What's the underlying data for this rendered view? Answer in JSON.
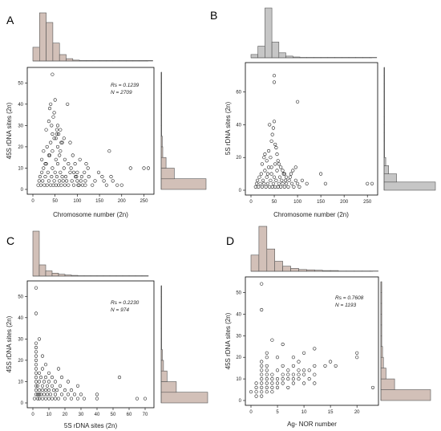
{
  "colors": {
    "hist_brown": "#d2c0b8",
    "hist_gray": "#c6c6c6",
    "point": "#111111"
  },
  "chart_data": [
    {
      "type": "scatter",
      "panel": "A",
      "xlabel": "Chromosome number (2n)",
      "ylabel": "45S rDNA sites (2n)",
      "rs": "Rs = 0.1239",
      "n": "N = 2709",
      "xlim": [
        0,
        260
      ],
      "ylim": [
        0,
        55
      ],
      "xticks": [
        0,
        50,
        100,
        150,
        200,
        250
      ],
      "yticks": [
        0,
        10,
        20,
        30,
        40,
        50
      ],
      "hist_color": "brown",
      "top_hist": {
        "bin_width": 15,
        "counts": [
          30,
          105,
          84,
          39,
          14,
          5,
          2,
          1,
          1,
          1,
          1,
          1,
          1,
          1,
          1,
          1,
          1,
          1
        ]
      },
      "right_hist": {
        "bin_width": 5,
        "counts": [
          82,
          24,
          9,
          3,
          2,
          1,
          1,
          1,
          1,
          1,
          1
        ]
      },
      "points": [
        [
          12,
          2
        ],
        [
          14,
          4
        ],
        [
          16,
          6
        ],
        [
          18,
          2
        ],
        [
          20,
          8
        ],
        [
          22,
          4
        ],
        [
          24,
          10
        ],
        [
          26,
          2
        ],
        [
          28,
          6
        ],
        [
          30,
          12
        ],
        [
          32,
          2
        ],
        [
          34,
          8
        ],
        [
          36,
          4
        ],
        [
          38,
          16
        ],
        [
          40,
          2
        ],
        [
          42,
          6
        ],
        [
          44,
          10
        ],
        [
          46,
          2
        ],
        [
          48,
          4
        ],
        [
          50,
          8
        ],
        [
          52,
          2
        ],
        [
          54,
          6
        ],
        [
          56,
          12
        ],
        [
          58,
          2
        ],
        [
          60,
          4
        ],
        [
          62,
          8
        ],
        [
          64,
          2
        ],
        [
          66,
          6
        ],
        [
          68,
          4
        ],
        [
          70,
          10
        ],
        [
          72,
          2
        ],
        [
          74,
          6
        ],
        [
          76,
          4
        ],
        [
          80,
          2
        ],
        [
          84,
          8
        ],
        [
          88,
          4
        ],
        [
          92,
          2
        ],
        [
          96,
          6
        ],
        [
          100,
          4
        ],
        [
          104,
          2
        ],
        [
          110,
          6
        ],
        [
          118,
          2
        ],
        [
          20,
          14
        ],
        [
          24,
          18
        ],
        [
          28,
          12
        ],
        [
          32,
          20
        ],
        [
          36,
          16
        ],
        [
          40,
          22
        ],
        [
          44,
          18
        ],
        [
          48,
          24
        ],
        [
          52,
          14
        ],
        [
          56,
          20
        ],
        [
          60,
          16
        ],
        [
          64,
          22
        ],
        [
          30,
          28
        ],
        [
          36,
          32
        ],
        [
          38,
          38
        ],
        [
          40,
          40
        ],
        [
          42,
          30
        ],
        [
          44,
          26
        ],
        [
          46,
          34
        ],
        [
          48,
          36
        ],
        [
          50,
          42
        ],
        [
          52,
          24
        ],
        [
          54,
          28
        ],
        [
          56,
          30
        ],
        [
          58,
          26
        ],
        [
          62,
          28
        ],
        [
          66,
          22
        ],
        [
          70,
          24
        ],
        [
          78,
          40
        ],
        [
          84,
          22
        ],
        [
          90,
          16
        ],
        [
          95,
          12
        ],
        [
          100,
          8
        ],
        [
          44,
          54
        ],
        [
          54,
          26
        ],
        [
          62,
          18
        ],
        [
          72,
          14
        ],
        [
          80,
          12
        ],
        [
          86,
          10
        ],
        [
          92,
          8
        ],
        [
          98,
          6
        ],
        [
          102,
          2
        ],
        [
          108,
          4
        ],
        [
          112,
          2
        ],
        [
          118,
          4
        ],
        [
          126,
          6
        ],
        [
          134,
          2
        ],
        [
          140,
          4
        ],
        [
          148,
          8
        ],
        [
          156,
          6
        ],
        [
          160,
          4
        ],
        [
          166,
          2
        ],
        [
          172,
          18
        ],
        [
          176,
          6
        ],
        [
          180,
          4
        ],
        [
          190,
          2
        ],
        [
          200,
          2
        ],
        [
          220,
          10
        ],
        [
          250,
          10
        ],
        [
          260,
          10
        ],
        [
          120,
          12
        ],
        [
          116,
          8
        ],
        [
          124,
          10
        ],
        [
          106,
          14
        ]
      ]
    },
    {
      "type": "scatter",
      "panel": "B",
      "xlabel": "Chromosome number (2n)",
      "ylabel": "5S rDNA sites (2n)",
      "xlim": [
        0,
        260
      ],
      "ylim": [
        0,
        75
      ],
      "xticks": [
        0,
        50,
        100,
        150,
        200,
        250
      ],
      "yticks": [
        0,
        20,
        40,
        60
      ],
      "hist_color": "gray",
      "top_hist": {
        "bin_width": 15,
        "counts": [
          8,
          28,
          120,
          38,
          12,
          4,
          2,
          1,
          1,
          1,
          1,
          1,
          1,
          1,
          1,
          1,
          1,
          1
        ]
      },
      "right_hist": {
        "bin_width": 5,
        "counts": [
          90,
          22,
          8,
          3,
          1,
          1,
          1,
          1,
          1,
          1,
          1,
          1,
          1,
          1,
          1
        ]
      },
      "points": [
        [
          10,
          2
        ],
        [
          12,
          4
        ],
        [
          14,
          6
        ],
        [
          16,
          2
        ],
        [
          18,
          8
        ],
        [
          20,
          4
        ],
        [
          22,
          10
        ],
        [
          24,
          2
        ],
        [
          26,
          6
        ],
        [
          28,
          4
        ],
        [
          30,
          12
        ],
        [
          32,
          2
        ],
        [
          34,
          8
        ],
        [
          36,
          4
        ],
        [
          38,
          14
        ],
        [
          40,
          2
        ],
        [
          42,
          6
        ],
        [
          44,
          10
        ],
        [
          46,
          2
        ],
        [
          48,
          4
        ],
        [
          50,
          8
        ],
        [
          52,
          2
        ],
        [
          54,
          6
        ],
        [
          56,
          12
        ],
        [
          58,
          2
        ],
        [
          60,
          4
        ],
        [
          62,
          8
        ],
        [
          64,
          2
        ],
        [
          66,
          6
        ],
        [
          68,
          4
        ],
        [
          70,
          10
        ],
        [
          72,
          2
        ],
        [
          74,
          6
        ],
        [
          76,
          4
        ],
        [
          80,
          2
        ],
        [
          84,
          8
        ],
        [
          88,
          4
        ],
        [
          92,
          2
        ],
        [
          96,
          6
        ],
        [
          100,
          4
        ],
        [
          104,
          2
        ],
        [
          110,
          6
        ],
        [
          24,
          16
        ],
        [
          28,
          20
        ],
        [
          30,
          22
        ],
        [
          34,
          18
        ],
        [
          38,
          24
        ],
        [
          40,
          40
        ],
        [
          42,
          20
        ],
        [
          44,
          30
        ],
        [
          46,
          34
        ],
        [
          48,
          38
        ],
        [
          50,
          42
        ],
        [
          52,
          28
        ],
        [
          54,
          26
        ],
        [
          56,
          22
        ],
        [
          58,
          18
        ],
        [
          60,
          16
        ],
        [
          64,
          14
        ],
        [
          68,
          12
        ],
        [
          72,
          10
        ],
        [
          76,
          8
        ],
        [
          82,
          6
        ],
        [
          50,
          70
        ],
        [
          50,
          66
        ],
        [
          100,
          54
        ],
        [
          120,
          4
        ],
        [
          150,
          10
        ],
        [
          160,
          4
        ],
        [
          250,
          4
        ],
        [
          260,
          4
        ],
        [
          90,
          12
        ],
        [
          96,
          14
        ],
        [
          86,
          10
        ],
        [
          36,
          10
        ],
        [
          44,
          14
        ],
        [
          52,
          16
        ]
      ]
    },
    {
      "type": "scatter",
      "panel": "C",
      "xlabel": "5S rDNA sites (2n)",
      "ylabel": "45S rDNA sites (2n)",
      "rs": "Rs = 0.2230",
      "n": "N = 974",
      "xlim": [
        0,
        72
      ],
      "ylim": [
        0,
        55
      ],
      "xticks": [
        0,
        10,
        20,
        30,
        40,
        50,
        60,
        70
      ],
      "yticks": [
        0,
        10,
        20,
        30,
        40,
        50
      ],
      "hist_color": "brown",
      "top_hist": {
        "bin_width": 4,
        "counts": [
          120,
          30,
          14,
          8,
          5,
          3,
          2,
          1,
          1,
          1,
          1,
          1,
          1,
          1,
          1,
          1,
          1,
          1
        ]
      },
      "right_hist": {
        "bin_width": 5,
        "counts": [
          80,
          26,
          10,
          4,
          2,
          1,
          1,
          1,
          1,
          1,
          1
        ]
      },
      "points": [
        [
          1,
          2
        ],
        [
          2,
          4
        ],
        [
          2,
          6
        ],
        [
          2,
          8
        ],
        [
          2,
          10
        ],
        [
          2,
          12
        ],
        [
          2,
          14
        ],
        [
          2,
          16
        ],
        [
          2,
          18
        ],
        [
          2,
          20
        ],
        [
          2,
          22
        ],
        [
          2,
          24
        ],
        [
          2,
          26
        ],
        [
          2,
          28
        ],
        [
          2,
          42
        ],
        [
          2,
          54
        ],
        [
          3,
          2
        ],
        [
          3,
          4
        ],
        [
          3,
          8
        ],
        [
          4,
          2
        ],
        [
          4,
          4
        ],
        [
          4,
          6
        ],
        [
          4,
          10
        ],
        [
          4,
          14
        ],
        [
          4,
          30
        ],
        [
          5,
          4
        ],
        [
          5,
          12
        ],
        [
          6,
          2
        ],
        [
          6,
          6
        ],
        [
          6,
          8
        ],
        [
          6,
          16
        ],
        [
          6,
          22
        ],
        [
          7,
          4
        ],
        [
          7,
          10
        ],
        [
          8,
          2
        ],
        [
          8,
          6
        ],
        [
          8,
          12
        ],
        [
          8,
          18
        ],
        [
          9,
          4
        ],
        [
          9,
          8
        ],
        [
          10,
          2
        ],
        [
          10,
          6
        ],
        [
          10,
          10
        ],
        [
          10,
          14
        ],
        [
          11,
          4
        ],
        [
          12,
          2
        ],
        [
          12,
          8
        ],
        [
          12,
          12
        ],
        [
          13,
          6
        ],
        [
          14,
          2
        ],
        [
          14,
          4
        ],
        [
          14,
          10
        ],
        [
          15,
          6
        ],
        [
          16,
          2
        ],
        [
          16,
          16
        ],
        [
          17,
          8
        ],
        [
          18,
          4
        ],
        [
          18,
          12
        ],
        [
          20,
          2
        ],
        [
          20,
          6
        ],
        [
          22,
          4
        ],
        [
          22,
          10
        ],
        [
          24,
          2
        ],
        [
          24,
          6
        ],
        [
          26,
          4
        ],
        [
          28,
          2
        ],
        [
          28,
          8
        ],
        [
          30,
          4
        ],
        [
          32,
          2
        ],
        [
          40,
          4
        ],
        [
          40,
          2
        ],
        [
          54,
          12
        ],
        [
          65,
          2
        ],
        [
          70,
          2
        ]
      ]
    },
    {
      "type": "scatter",
      "panel": "D",
      "xlabel": "Ag- NOR number",
      "ylabel": "45S rDNA sites (2n)",
      "rs": "Rs = 0.7608",
      "n": "N = 1193",
      "xlim": [
        0,
        23
      ],
      "ylim": [
        0,
        55
      ],
      "xticks": [
        0,
        5,
        10,
        15,
        20
      ],
      "yticks": [
        0,
        10,
        20,
        30,
        40,
        50
      ],
      "hist_color": "brown",
      "top_hist": {
        "bin_width": 1.5,
        "counts": [
          45,
          125,
          62,
          28,
          14,
          8,
          5,
          4,
          3,
          2,
          2,
          1,
          1,
          1,
          1,
          1
        ]
      },
      "right_hist": {
        "bin_width": 5,
        "counts": [
          58,
          16,
          6,
          3,
          2,
          1,
          1,
          1,
          1,
          1,
          1
        ]
      },
      "points": [
        [
          1,
          2
        ],
        [
          1,
          4
        ],
        [
          1,
          6
        ],
        [
          2,
          2
        ],
        [
          2,
          4
        ],
        [
          2,
          6
        ],
        [
          2,
          8
        ],
        [
          2,
          10
        ],
        [
          2,
          12
        ],
        [
          2,
          14
        ],
        [
          2,
          16
        ],
        [
          2,
          18
        ],
        [
          2,
          42
        ],
        [
          2,
          54
        ],
        [
          3,
          4
        ],
        [
          3,
          6
        ],
        [
          3,
          8
        ],
        [
          3,
          10
        ],
        [
          3,
          12
        ],
        [
          3,
          14
        ],
        [
          3,
          16
        ],
        [
          3,
          20
        ],
        [
          3,
          22
        ],
        [
          4,
          4
        ],
        [
          4,
          8
        ],
        [
          4,
          10
        ],
        [
          4,
          12
        ],
        [
          4,
          28
        ],
        [
          5,
          6
        ],
        [
          5,
          10
        ],
        [
          5,
          14
        ],
        [
          5,
          20
        ],
        [
          6,
          8
        ],
        [
          6,
          12
        ],
        [
          6,
          16
        ],
        [
          6,
          26
        ],
        [
          7,
          6
        ],
        [
          7,
          10
        ],
        [
          7,
          14
        ],
        [
          8,
          8
        ],
        [
          8,
          12
        ],
        [
          8,
          16
        ],
        [
          8,
          20
        ],
        [
          9,
          10
        ],
        [
          9,
          14
        ],
        [
          9,
          18
        ],
        [
          10,
          12
        ],
        [
          10,
          22
        ],
        [
          10,
          8
        ],
        [
          11,
          10
        ],
        [
          11,
          14
        ],
        [
          12,
          12
        ],
        [
          12,
          16
        ],
        [
          12,
          24
        ],
        [
          12,
          8
        ],
        [
          14,
          16
        ],
        [
          15,
          18
        ],
        [
          16,
          16
        ],
        [
          20,
          20
        ],
        [
          20,
          22
        ],
        [
          23,
          6
        ],
        [
          0,
          4
        ],
        [
          1,
          8
        ],
        [
          4,
          6
        ],
        [
          5,
          8
        ],
        [
          6,
          10
        ],
        [
          7,
          12
        ],
        [
          8,
          10
        ],
        [
          9,
          12
        ],
        [
          10,
          14
        ]
      ]
    }
  ]
}
